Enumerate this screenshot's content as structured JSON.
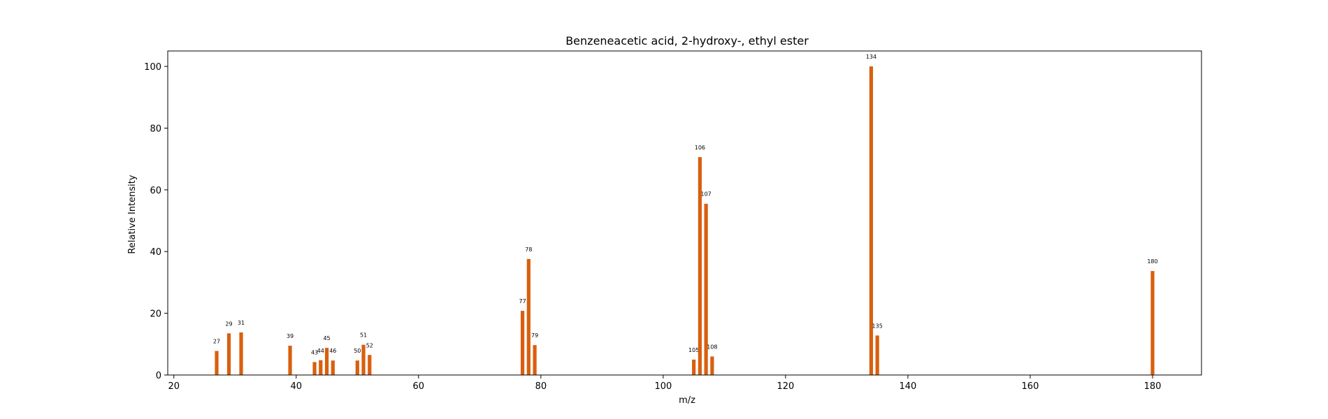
{
  "chart_data": {
    "type": "bar",
    "title": "Benzeneacetic acid, 2-hydroxy-, ethyl ester",
    "xlabel": "m/z",
    "ylabel": "Relative Intensity",
    "xlim": [
      19,
      188
    ],
    "ylim": [
      0,
      105
    ],
    "xticks": [
      20,
      40,
      60,
      80,
      100,
      120,
      140,
      160,
      180
    ],
    "yticks": [
      0,
      20,
      40,
      60,
      80,
      100
    ],
    "grid": false,
    "bar_color": "#d95f0e",
    "x": [
      27,
      29,
      31,
      39,
      43,
      44,
      45,
      46,
      50,
      51,
      52,
      77,
      78,
      79,
      105,
      106,
      107,
      108,
      134,
      135,
      180
    ],
    "values": [
      7.8,
      13.5,
      13.8,
      9.5,
      4.2,
      4.8,
      8.8,
      4.7,
      4.7,
      9.8,
      6.5,
      20.8,
      37.6,
      9.7,
      5.0,
      70.6,
      55.5,
      6.0,
      100,
      12.8,
      33.7
    ],
    "labels": [
      "27",
      "29",
      "31",
      "39",
      "43",
      "44",
      "45",
      "46",
      "50",
      "51",
      "52",
      "77",
      "78",
      "79",
      "105",
      "106",
      "107",
      "108",
      "134",
      "135",
      "180"
    ]
  }
}
